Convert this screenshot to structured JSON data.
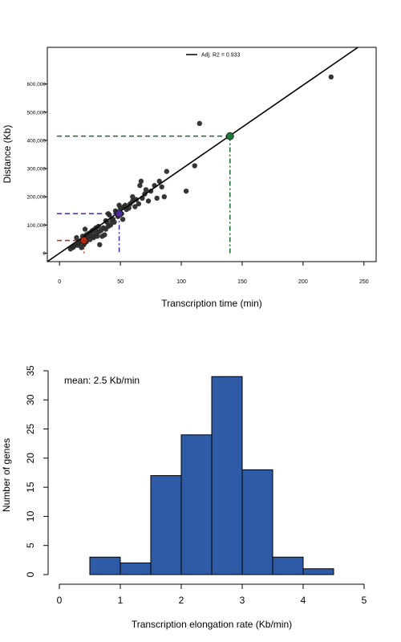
{
  "chart_data": [
    {
      "type": "scatter",
      "xlabel": "Transcription time (min)",
      "ylabel": "Distance (Kb)",
      "xlim": [
        -10,
        260
      ],
      "ylim": [
        -30000,
        730000
      ],
      "x_ticks": [
        0,
        50,
        100,
        150,
        200,
        250
      ],
      "y_ticks": [
        0,
        100000,
        200000,
        300000,
        400000,
        500000,
        600000
      ],
      "y_tick_labels": [
        "0",
        "100,000",
        "200,000",
        "300,000",
        "400,000",
        "500,000",
        "600,000"
      ],
      "legend": {
        "label": "Adj. R2 = 0.933",
        "placement": "top-center"
      },
      "fit_line": {
        "x": [
          -10,
          245
        ],
        "y": [
          -35000,
          730000
        ]
      },
      "point_color": "#2b2b2b",
      "points": [
        [
          9,
          15000
        ],
        [
          11,
          20000
        ],
        [
          12,
          25000
        ],
        [
          13,
          30000
        ],
        [
          14,
          55000
        ],
        [
          15,
          28000
        ],
        [
          16,
          35000
        ],
        [
          17,
          40000
        ],
        [
          18,
          45000
        ],
        [
          18,
          20000
        ],
        [
          19,
          60000
        ],
        [
          20,
          50000
        ],
        [
          20,
          30000
        ],
        [
          21,
          85000
        ],
        [
          22,
          65000
        ],
        [
          22,
          40000
        ],
        [
          23,
          55000
        ],
        [
          24,
          70000
        ],
        [
          25,
          48000
        ],
        [
          25,
          60000
        ],
        [
          26,
          75000
        ],
        [
          27,
          80000
        ],
        [
          28,
          60000
        ],
        [
          28,
          55000
        ],
        [
          29,
          85000
        ],
        [
          30,
          70000
        ],
        [
          30,
          90000
        ],
        [
          31,
          60000
        ],
        [
          32,
          95000
        ],
        [
          32,
          75000
        ],
        [
          33,
          30000
        ],
        [
          34,
          80000
        ],
        [
          35,
          60000
        ],
        [
          36,
          90000
        ],
        [
          37,
          65000
        ],
        [
          38,
          85000
        ],
        [
          38,
          115000
        ],
        [
          39,
          110000
        ],
        [
          40,
          140000
        ],
        [
          40,
          95000
        ],
        [
          41,
          135000
        ],
        [
          42,
          100000
        ],
        [
          43,
          115000
        ],
        [
          44,
          120000
        ],
        [
          45,
          110000
        ],
        [
          46,
          150000
        ],
        [
          47,
          145000
        ],
        [
          48,
          130000
        ],
        [
          49,
          170000
        ],
        [
          50,
          160000
        ],
        [
          51,
          140000
        ],
        [
          52,
          120000
        ],
        [
          53,
          165000
        ],
        [
          54,
          170000
        ],
        [
          55,
          155000
        ],
        [
          57,
          160000
        ],
        [
          58,
          175000
        ],
        [
          60,
          200000
        ],
        [
          60,
          185000
        ],
        [
          62,
          165000
        ],
        [
          63,
          190000
        ],
        [
          65,
          175000
        ],
        [
          66,
          240000
        ],
        [
          67,
          255000
        ],
        [
          68,
          195000
        ],
        [
          70,
          210000
        ],
        [
          71,
          225000
        ],
        [
          73,
          185000
        ],
        [
          75,
          220000
        ],
        [
          78,
          240000
        ],
        [
          80,
          195000
        ],
        [
          82,
          255000
        ],
        [
          84,
          235000
        ],
        [
          86,
          200000
        ],
        [
          88,
          290000
        ],
        [
          104,
          220000
        ],
        [
          111,
          310000
        ],
        [
          115,
          460000
        ],
        [
          223,
          625000
        ]
      ],
      "markers": [
        {
          "x": 20,
          "y": 45000,
          "color": "#b22a10",
          "line_color": "#b22a10"
        },
        {
          "x": 49,
          "y": 140000,
          "color": "#4a2c9a",
          "line_color": "#3d2db0"
        },
        {
          "x": 140,
          "y": 415000,
          "color": "#1e7a3a",
          "line_color": "#1a6a2e"
        }
      ]
    },
    {
      "type": "bar",
      "title": "",
      "annotation": "mean: 2.5 Kb/min",
      "xlabel": "Transcription elongation rate (Kb/min)",
      "ylabel": "Number of genes",
      "xlim": [
        -0.2,
        5.2
      ],
      "ylim": [
        -1.5,
        36
      ],
      "x_ticks": [
        0,
        1,
        2,
        3,
        4,
        5
      ],
      "y_ticks": [
        0,
        5,
        10,
        15,
        20,
        25,
        30,
        35
      ],
      "bar_color": "#2f5ba6",
      "bins": [
        {
          "from": 0.5,
          "to": 1.0,
          "count": 3
        },
        {
          "from": 1.0,
          "to": 1.5,
          "count": 2
        },
        {
          "from": 1.5,
          "to": 2.0,
          "count": 17
        },
        {
          "from": 2.0,
          "to": 2.5,
          "count": 24
        },
        {
          "from": 2.5,
          "to": 3.0,
          "count": 34
        },
        {
          "from": 3.0,
          "to": 3.5,
          "count": 18
        },
        {
          "from": 3.5,
          "to": 4.0,
          "count": 3
        },
        {
          "from": 4.0,
          "to": 4.5,
          "count": 1
        }
      ]
    }
  ]
}
